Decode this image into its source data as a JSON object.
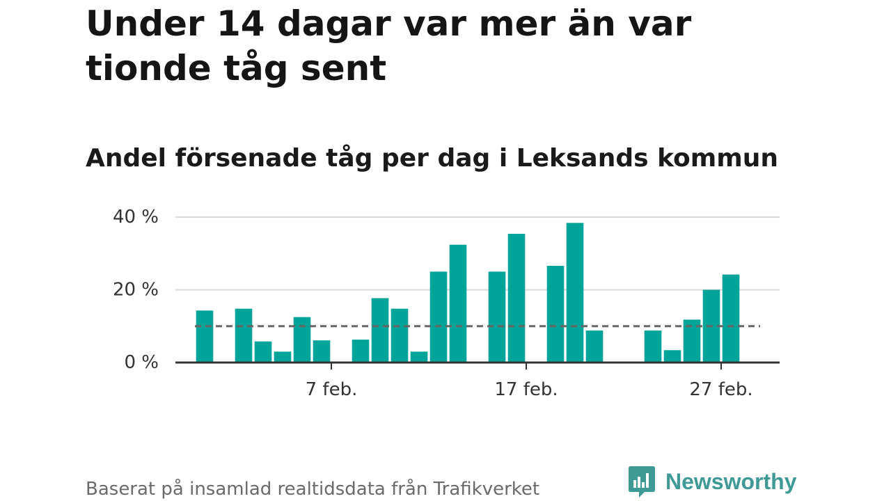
{
  "header": {
    "title": "Under 14 dagar var mer än var tionde tåg sent",
    "subtitle": "Andel försenade tåg per dag i Leksands kommun"
  },
  "footer": {
    "source": "Baserat på insamlad realtidsdata från Trafikverket",
    "brand": "Newsworthy"
  },
  "colors": {
    "bar": "#00a498",
    "reference_line": "#666666",
    "grid": "#d9d9d9",
    "axis": "#333333",
    "brand": "#3f9a95"
  },
  "icons": {
    "brand_logo": "bar-chart-speech-bubble-icon"
  },
  "chart_data": {
    "type": "bar",
    "title": "",
    "xlabel": "",
    "ylabel": "",
    "ylim": [
      0,
      40
    ],
    "yticks": [
      0,
      20,
      40
    ],
    "ytick_labels": [
      "0 %",
      "20 %",
      "40 %"
    ],
    "xlim": [
      "2022-01-30",
      "2022-03-02"
    ],
    "xticks": [
      "2022-02-07",
      "2022-02-17",
      "2022-02-27"
    ],
    "xtick_labels": [
      "7 feb.",
      "17 feb.",
      "27 feb."
    ],
    "grid": true,
    "reference_line": 10.0,
    "categories": [
      "2022-01-31",
      "2022-02-01",
      "2022-02-02",
      "2022-02-03",
      "2022-02-04",
      "2022-02-05",
      "2022-02-06",
      "2022-02-07",
      "2022-02-08",
      "2022-02-09",
      "2022-02-10",
      "2022-02-11",
      "2022-02-12",
      "2022-02-13",
      "2022-02-14",
      "2022-02-15",
      "2022-02-16",
      "2022-02-17",
      "2022-02-18",
      "2022-02-19",
      "2022-02-20",
      "2022-02-21",
      "2022-02-22",
      "2022-02-23",
      "2022-02-24",
      "2022-02-25",
      "2022-02-26",
      "2022-02-27",
      "2022-02-28"
    ],
    "values": [
      14.3,
      null,
      14.8,
      5.8,
      3.0,
      12.5,
      6.1,
      null,
      6.3,
      17.7,
      14.8,
      3.0,
      25.0,
      32.4,
      null,
      25.0,
      35.4,
      null,
      26.6,
      38.4,
      8.8,
      null,
      null,
      8.8,
      3.4,
      11.8,
      20.0,
      24.2,
      null
    ]
  }
}
